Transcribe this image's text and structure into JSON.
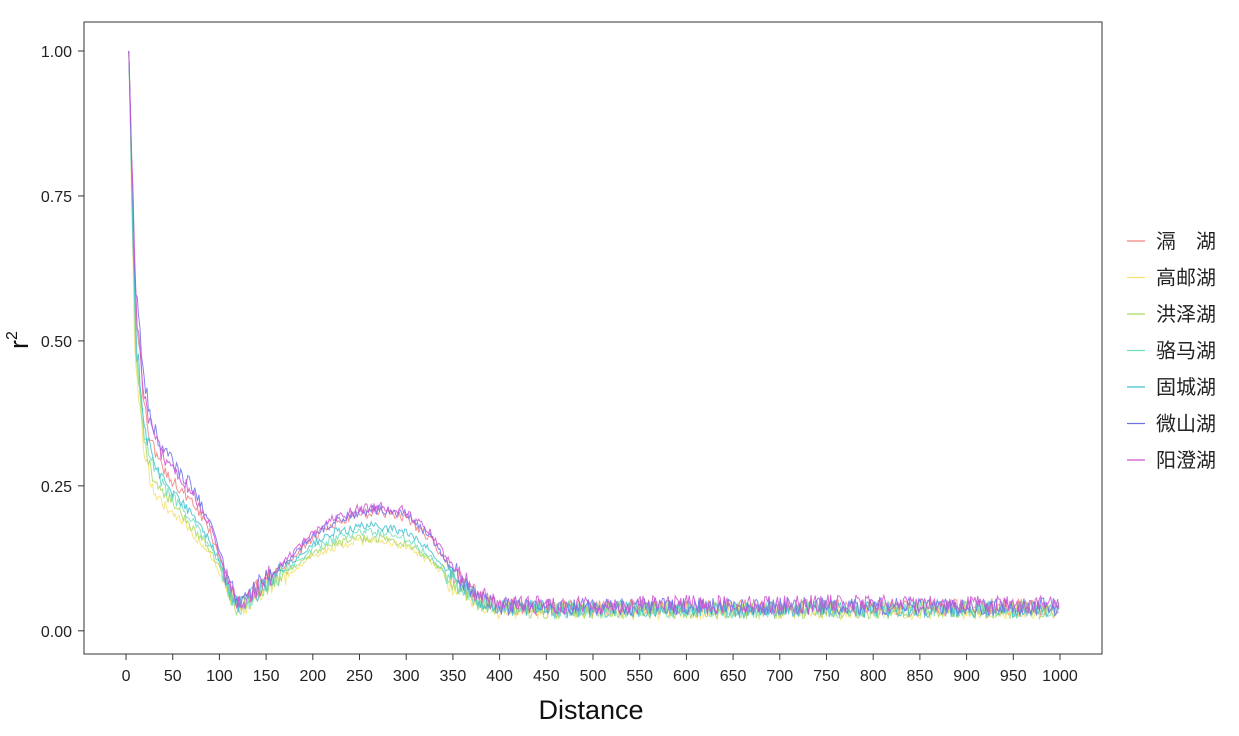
{
  "chart_data": {
    "type": "line",
    "xlabel": "Distance",
    "ylabel": "r",
    "ylabel_superscript": "2",
    "xlim": [
      -45,
      1045
    ],
    "ylim": [
      -0.04,
      1.05
    ],
    "x_ticks": [
      0,
      50,
      100,
      150,
      200,
      250,
      300,
      350,
      400,
      450,
      500,
      550,
      600,
      650,
      700,
      750,
      800,
      850,
      900,
      950,
      1000
    ],
    "x_tick_labels": [
      "0",
      "50",
      "100",
      "150",
      "200",
      "250",
      "300",
      "350",
      "400",
      "450",
      "500",
      "550",
      "600",
      "650",
      "700",
      "750",
      "800",
      "850",
      "900",
      "950",
      "1000"
    ],
    "y_ticks": [
      0,
      0.25,
      0.5,
      0.75,
      1.0
    ],
    "y_tick_labels": [
      "0.00",
      "0.25",
      "0.50",
      "0.75",
      "1.00"
    ],
    "grid": false,
    "legend_position": "right",
    "x": [
      3,
      10,
      20,
      30,
      40,
      50,
      60,
      70,
      80,
      90,
      100,
      110,
      120,
      130,
      140,
      150,
      175,
      200,
      225,
      250,
      275,
      300,
      325,
      350,
      375,
      400,
      450,
      500,
      550,
      600,
      650,
      700,
      750,
      800,
      850,
      900,
      950,
      1000
    ],
    "series": [
      {
        "name": "滆　湖",
        "color": "#f08080",
        "values": [
          1.0,
          0.55,
          0.38,
          0.31,
          0.28,
          0.26,
          0.24,
          0.22,
          0.2,
          0.17,
          0.13,
          0.08,
          0.045,
          0.055,
          0.07,
          0.085,
          0.12,
          0.16,
          0.185,
          0.2,
          0.205,
          0.195,
          0.16,
          0.1,
          0.06,
          0.042,
          0.04,
          0.038,
          0.04,
          0.04,
          0.039,
          0.041,
          0.04,
          0.039,
          0.04,
          0.04,
          0.041,
          0.04
        ]
      },
      {
        "name": "高邮湖",
        "color": "#f5e070",
        "values": [
          1.0,
          0.45,
          0.3,
          0.24,
          0.22,
          0.2,
          0.19,
          0.17,
          0.15,
          0.13,
          0.1,
          0.06,
          0.035,
          0.045,
          0.06,
          0.075,
          0.1,
          0.13,
          0.145,
          0.155,
          0.155,
          0.145,
          0.12,
          0.08,
          0.05,
          0.035,
          0.034,
          0.033,
          0.034,
          0.034,
          0.033,
          0.034,
          0.034,
          0.033,
          0.034,
          0.034,
          0.033,
          0.034
        ]
      },
      {
        "name": "洪泽湖",
        "color": "#a8d860",
        "values": [
          1.0,
          0.48,
          0.32,
          0.26,
          0.24,
          0.22,
          0.2,
          0.18,
          0.16,
          0.14,
          0.11,
          0.065,
          0.038,
          0.048,
          0.063,
          0.078,
          0.105,
          0.135,
          0.15,
          0.16,
          0.16,
          0.15,
          0.125,
          0.085,
          0.052,
          0.037,
          0.036,
          0.035,
          0.036,
          0.036,
          0.035,
          0.036,
          0.036,
          0.035,
          0.036,
          0.036,
          0.035,
          0.036
        ]
      },
      {
        "name": "骆马湖",
        "color": "#6ee0c0",
        "values": [
          1.0,
          0.5,
          0.34,
          0.28,
          0.25,
          0.23,
          0.21,
          0.19,
          0.17,
          0.15,
          0.115,
          0.07,
          0.04,
          0.05,
          0.065,
          0.08,
          0.11,
          0.14,
          0.16,
          0.17,
          0.17,
          0.16,
          0.13,
          0.088,
          0.054,
          0.038,
          0.037,
          0.036,
          0.037,
          0.037,
          0.036,
          0.037,
          0.037,
          0.036,
          0.037,
          0.037,
          0.036,
          0.037
        ]
      },
      {
        "name": "固城湖",
        "color": "#40c0d0",
        "values": [
          1.0,
          0.52,
          0.35,
          0.29,
          0.26,
          0.24,
          0.22,
          0.2,
          0.18,
          0.155,
          0.12,
          0.072,
          0.041,
          0.052,
          0.067,
          0.082,
          0.115,
          0.15,
          0.17,
          0.18,
          0.18,
          0.17,
          0.14,
          0.092,
          0.056,
          0.039,
          0.038,
          0.037,
          0.038,
          0.038,
          0.037,
          0.038,
          0.038,
          0.037,
          0.038,
          0.038,
          0.037,
          0.038
        ]
      },
      {
        "name": "微山湖",
        "color": "#6f6fea",
        "values": [
          1.0,
          0.6,
          0.42,
          0.35,
          0.31,
          0.29,
          0.27,
          0.25,
          0.22,
          0.19,
          0.14,
          0.085,
          0.048,
          0.058,
          0.075,
          0.09,
          0.125,
          0.165,
          0.19,
          0.205,
          0.21,
          0.2,
          0.165,
          0.105,
          0.062,
          0.043,
          0.042,
          0.041,
          0.042,
          0.042,
          0.041,
          0.042,
          0.042,
          0.041,
          0.042,
          0.042,
          0.041,
          0.042
        ]
      },
      {
        "name": "阳澄湖",
        "color": "#d050d0",
        "values": [
          1.0,
          0.58,
          0.4,
          0.33,
          0.3,
          0.28,
          0.26,
          0.24,
          0.21,
          0.18,
          0.135,
          0.08,
          0.046,
          0.056,
          0.072,
          0.088,
          0.13,
          0.17,
          0.195,
          0.21,
          0.215,
          0.205,
          0.17,
          0.11,
          0.065,
          0.046,
          0.045,
          0.044,
          0.045,
          0.046,
          0.045,
          0.046,
          0.047,
          0.046,
          0.046,
          0.047,
          0.046,
          0.046
        ]
      }
    ]
  }
}
